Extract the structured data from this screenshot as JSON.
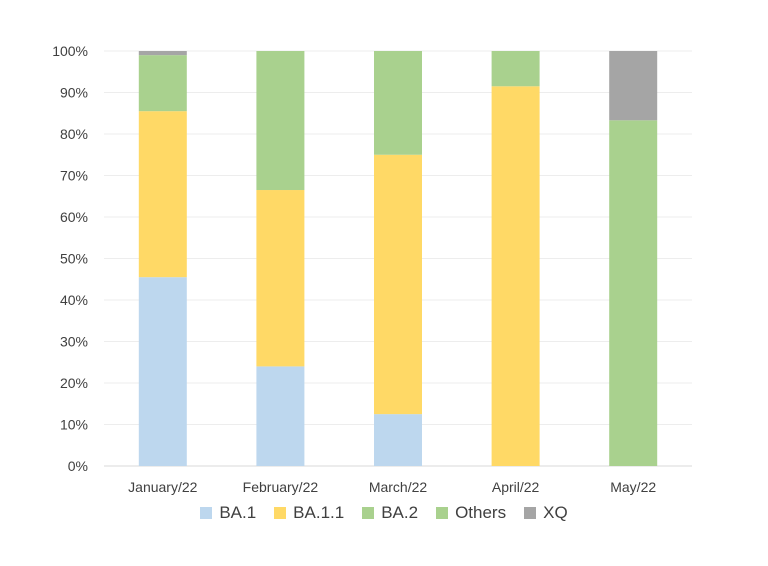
{
  "chart_data": {
    "type": "bar",
    "stacked": true,
    "categories": [
      "January/22",
      "February/22",
      "March/22",
      "April/22",
      "May/22"
    ],
    "series": [
      {
        "name": "BA.1",
        "color": "#bdd7ee",
        "values": [
          45.5,
          24,
          12.5,
          0,
          0
        ]
      },
      {
        "name": "BA.1.1",
        "color": "#ffd966",
        "values": [
          40,
          42.5,
          62.5,
          91.5,
          0
        ]
      },
      {
        "name": "BA.2",
        "color": "#a9d18e",
        "values": [
          13.5,
          33.5,
          25,
          8.5,
          83.3
        ]
      },
      {
        "name": "Others",
        "color": "#a9d18e",
        "values": [
          0,
          0,
          0,
          0,
          0
        ]
      },
      {
        "name": "XQ",
        "color": "#a5a5a5",
        "values": [
          1,
          0,
          0,
          0,
          16.7
        ]
      }
    ],
    "yticks": [
      "0%",
      "10%",
      "20%",
      "30%",
      "40%",
      "50%",
      "60%",
      "70%",
      "80%",
      "90%",
      "100%"
    ],
    "ylim": [
      0,
      100
    ],
    "grid": true,
    "legend_position": "bottom"
  }
}
